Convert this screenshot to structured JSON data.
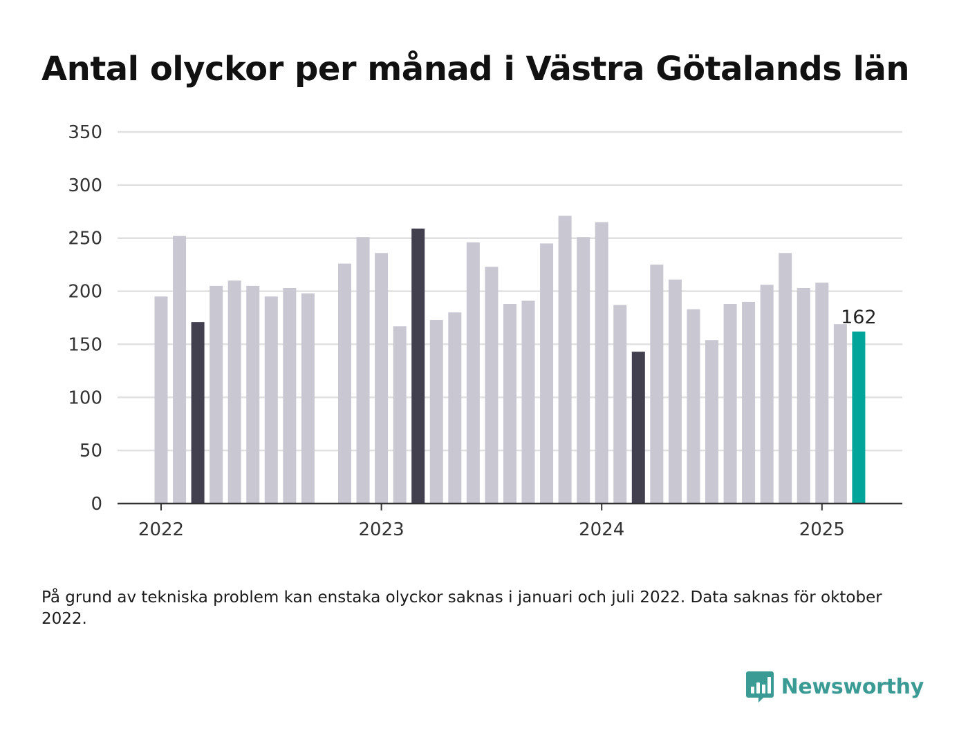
{
  "title": "Antal olyckor per månad i Västra Götalands län",
  "footnote": "På grund av tekniska problem kan enstaka olyckor saknas i januari och juli 2022. Data saknas för oktober 2022.",
  "brand": {
    "name": "Newsworthy",
    "icon": "bar-chart-logo-icon",
    "color": "#3a9a94"
  },
  "colors": {
    "default_bar": "#c8c7d2",
    "highlight_bar": "#42404f",
    "latest_bar": "#02a59a",
    "grid": "#e0e0e0",
    "axis": "#333333"
  },
  "chart_data": {
    "type": "bar",
    "title": "Antal olyckor per månad i Västra Götalands län",
    "xlabel": "",
    "ylabel": "",
    "ylim": [
      0,
      350
    ],
    "yticks": [
      0,
      50,
      100,
      150,
      200,
      250,
      300,
      350
    ],
    "xticks": [
      "2022",
      "2023",
      "2024",
      "2025"
    ],
    "grid": true,
    "legend": "none",
    "categories": [
      "2022-01",
      "2022-02",
      "2022-03",
      "2022-04",
      "2022-05",
      "2022-06",
      "2022-07",
      "2022-08",
      "2022-09",
      "2022-10",
      "2022-11",
      "2022-12",
      "2023-01",
      "2023-02",
      "2023-03",
      "2023-04",
      "2023-05",
      "2023-06",
      "2023-07",
      "2023-08",
      "2023-09",
      "2023-10",
      "2023-11",
      "2023-12",
      "2024-01",
      "2024-02",
      "2024-03",
      "2024-04",
      "2024-05",
      "2024-06",
      "2024-07",
      "2024-08",
      "2024-09",
      "2024-10",
      "2024-11",
      "2024-12",
      "2025-01",
      "2025-02",
      "2025-03"
    ],
    "values": [
      195,
      252,
      171,
      205,
      210,
      205,
      195,
      203,
      198,
      null,
      226,
      251,
      236,
      167,
      259,
      173,
      180,
      246,
      223,
      188,
      191,
      245,
      271,
      251,
      265,
      187,
      143,
      225,
      211,
      183,
      154,
      188,
      190,
      206,
      236,
      203,
      208,
      169,
      162
    ],
    "highlight_indices": [
      2,
      14,
      26
    ],
    "latest_index": 38,
    "labels": [
      {
        "index": 38,
        "text": "162"
      }
    ]
  }
}
